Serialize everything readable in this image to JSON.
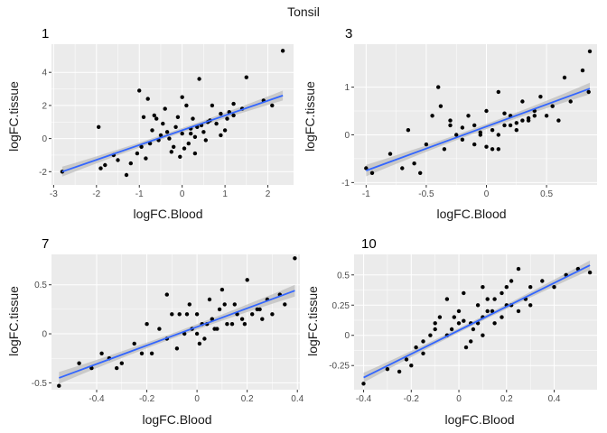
{
  "title": "Tonsil",
  "colors": {
    "panel_bg": "#ebebeb",
    "grid": "#ffffff",
    "point": "#000000",
    "fit_line": "#3366ff",
    "ribbon": "#bdbdbd"
  },
  "chart_data": [
    {
      "type": "scatter",
      "title": "1",
      "xlabel": "logFC.Blood",
      "ylabel": "logFC.tissue",
      "xlim": [
        -3.05,
        2.6
      ],
      "ylim": [
        -2.8,
        5.7
      ],
      "x_ticks": [
        -3,
        -2,
        -1,
        0,
        1,
        2
      ],
      "y_ticks": [
        -2,
        0,
        2,
        4
      ],
      "grid": true,
      "fit": {
        "x": [
          -2.8,
          2.35
        ],
        "y": [
          -2.0,
          2.6
        ],
        "band": 0.3
      },
      "points": {
        "x": [
          2.35,
          -2.8,
          -1.95,
          -1.9,
          -1.5,
          -1.3,
          -1.2,
          -1.05,
          -1.0,
          -0.95,
          -0.9,
          -0.8,
          -0.75,
          -0.7,
          -0.6,
          -0.5,
          -0.4,
          -0.3,
          -0.2,
          -0.15,
          -0.1,
          0.0,
          0.05,
          0.1,
          0.2,
          0.3,
          0.4,
          0.5,
          0.6,
          0.7,
          0.8,
          0.9,
          1.0,
          1.1,
          1.2,
          1.4,
          1.5,
          1.9,
          2.1,
          0.15,
          0.25,
          -0.05,
          -0.45,
          -0.65,
          -0.85,
          0.55,
          0.65,
          0.45,
          0.0,
          -0.25,
          -1.6,
          -1.8,
          1.2,
          0.9,
          0.2,
          -0.35,
          0.35,
          1.05,
          -0.55,
          0.3
        ],
        "y": [
          5.3,
          -2.0,
          0.7,
          -1.8,
          -1.3,
          -2.2,
          -1.5,
          -0.9,
          2.9,
          -0.5,
          1.3,
          2.4,
          -0.3,
          0.5,
          1.2,
          0.2,
          1.8,
          0.0,
          -0.5,
          0.7,
          1.3,
          0.3,
          -0.6,
          2.0,
          0.6,
          -0.9,
          3.6,
          0.4,
          1.0,
          2.0,
          0.9,
          1.5,
          0.5,
          1.6,
          1.4,
          1.8,
          3.7,
          2.3,
          2.0,
          -0.3,
          1.2,
          -1.1,
          0.9,
          1.4,
          -1.2,
          -0.1,
          1.1,
          0.8,
          2.5,
          -0.8,
          -1.0,
          -1.6,
          2.1,
          0.2,
          0.3,
          0.4,
          0.7,
          1.2,
          -0.1,
          0.1
        ]
      }
    },
    {
      "type": "scatter",
      "title": "3",
      "xlabel": "logFC.Blood",
      "ylabel": "logFC.tissue",
      "xlim": [
        -1.1,
        0.92
      ],
      "ylim": [
        -1.05,
        1.9
      ],
      "x_ticks": [
        -1.0,
        -0.5,
        0.0,
        0.5
      ],
      "y_ticks": [
        -1,
        0,
        1
      ],
      "grid": true,
      "fit": {
        "x": [
          -1.0,
          0.86
        ],
        "y": [
          -0.75,
          0.97
        ],
        "band": 0.12
      },
      "points": {
        "x": [
          0.86,
          -1.0,
          -0.95,
          -0.8,
          -0.7,
          -0.65,
          -0.6,
          -0.55,
          -0.5,
          -0.45,
          -0.4,
          -0.38,
          -0.35,
          -0.3,
          -0.25,
          -0.2,
          -0.15,
          -0.1,
          -0.05,
          0.0,
          0.05,
          0.1,
          0.15,
          0.2,
          0.25,
          0.3,
          0.35,
          0.4,
          0.45,
          0.5,
          0.55,
          0.6,
          0.65,
          0.7,
          0.8,
          0.85,
          0.1,
          0.2,
          -0.2,
          0.0,
          0.3,
          -0.1,
          0.15,
          0.05,
          -0.3,
          0.4,
          0.25,
          -0.05,
          0.1,
          0.35
        ],
        "y": [
          1.75,
          -0.7,
          -0.8,
          -0.4,
          -0.7,
          0.1,
          -0.6,
          -0.8,
          -0.2,
          0.4,
          1.0,
          0.6,
          -0.3,
          0.3,
          0.0,
          -0.1,
          0.4,
          0.2,
          0.0,
          0.5,
          -0.3,
          0.9,
          0.2,
          0.4,
          0.1,
          0.7,
          0.3,
          0.5,
          0.8,
          0.4,
          0.6,
          0.3,
          1.2,
          0.7,
          1.35,
          0.9,
          0.0,
          0.2,
          0.15,
          -0.25,
          0.3,
          -0.2,
          0.45,
          0.1,
          0.2,
          0.4,
          0.25,
          0.05,
          -0.3,
          0.35
        ]
      }
    },
    {
      "type": "scatter",
      "title": "7",
      "xlabel": "logFC.Blood",
      "ylabel": "logFC.tissue",
      "xlim": [
        -0.58,
        0.41
      ],
      "ylim": [
        -0.57,
        0.81
      ],
      "x_ticks": [
        -0.4,
        -0.2,
        0.0,
        0.2,
        0.4
      ],
      "y_ticks": [
        -0.5,
        0.0,
        0.5
      ],
      "grid": true,
      "fit": {
        "x": [
          -0.55,
          0.39
        ],
        "y": [
          -0.45,
          0.44
        ],
        "band": 0.06
      },
      "points": {
        "x": [
          0.39,
          -0.55,
          -0.47,
          -0.42,
          -0.38,
          -0.35,
          -0.32,
          -0.3,
          -0.25,
          -0.2,
          -0.18,
          -0.15,
          -0.12,
          -0.1,
          -0.08,
          -0.05,
          -0.03,
          0.0,
          0.02,
          0.05,
          0.08,
          0.1,
          0.12,
          0.15,
          0.18,
          0.2,
          0.22,
          0.25,
          0.28,
          0.3,
          0.33,
          0.35,
          -0.02,
          0.03,
          0.06,
          -0.07,
          0.14,
          0.09,
          0.0,
          -0.12,
          0.16,
          0.26,
          -0.22,
          0.04,
          0.11,
          0.07,
          -0.04,
          0.19,
          0.01,
          0.24
        ],
        "y": [
          0.77,
          -0.53,
          -0.3,
          -0.35,
          -0.2,
          -0.25,
          -0.35,
          -0.3,
          -0.1,
          0.1,
          -0.2,
          0.05,
          0.4,
          0.2,
          -0.15,
          0.0,
          0.3,
          0.2,
          0.1,
          0.35,
          0.05,
          0.45,
          0.1,
          0.3,
          0.15,
          0.55,
          0.2,
          0.25,
          0.35,
          0.2,
          0.4,
          0.3,
          0.05,
          -0.05,
          0.15,
          0.2,
          0.1,
          0.25,
          0.0,
          -0.05,
          0.2,
          0.15,
          -0.2,
          0.1,
          0.3,
          0.05,
          0.2,
          0.1,
          -0.1,
          0.25
        ]
      }
    },
    {
      "type": "scatter",
      "title": "10",
      "xlabel": "logFC.Blood",
      "ylabel": "logFC.tissue",
      "xlim": [
        -0.44,
        0.58
      ],
      "ylim": [
        -0.45,
        0.67
      ],
      "x_ticks": [
        -0.4,
        -0.2,
        0.0,
        0.2,
        0.4
      ],
      "y_ticks": [
        -0.25,
        0.0,
        0.25,
        0.5
      ],
      "grid": true,
      "fit": {
        "x": [
          -0.4,
          0.55
        ],
        "y": [
          -0.35,
          0.58
        ],
        "band": 0.04
      },
      "points": {
        "x": [
          -0.4,
          0.55,
          -0.3,
          -0.25,
          -0.22,
          -0.2,
          -0.18,
          -0.15,
          -0.12,
          -0.1,
          -0.08,
          -0.05,
          -0.03,
          0.0,
          0.02,
          0.05,
          0.08,
          0.1,
          0.12,
          0.15,
          0.18,
          0.2,
          0.22,
          0.25,
          0.28,
          0.3,
          0.35,
          0.4,
          0.45,
          0.5,
          -0.1,
          0.0,
          0.05,
          0.1,
          0.15,
          0.2,
          0.25,
          -0.05,
          0.08,
          0.12,
          0.18,
          0.03,
          -0.15,
          0.22,
          0.06,
          0.14,
          -0.02,
          0.1,
          0.3,
          0.02
        ],
        "y": [
          -0.4,
          0.52,
          -0.28,
          -0.3,
          -0.2,
          -0.25,
          -0.1,
          -0.05,
          0.0,
          0.1,
          0.15,
          0.3,
          0.05,
          0.2,
          0.35,
          0.1,
          0.25,
          0.4,
          0.2,
          0.3,
          0.15,
          0.4,
          0.25,
          0.55,
          0.3,
          0.4,
          0.45,
          0.4,
          0.5,
          0.55,
          0.05,
          0.1,
          -0.05,
          0.15,
          0.1,
          0.25,
          0.2,
          0.0,
          0.1,
          0.3,
          0.35,
          -0.1,
          -0.15,
          0.45,
          0.05,
          0.2,
          0.15,
          0.0,
          0.25,
          0.12
        ]
      }
    }
  ]
}
